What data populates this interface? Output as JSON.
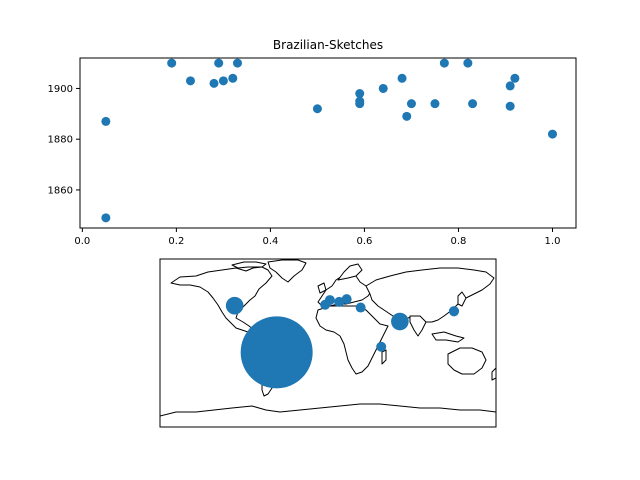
{
  "chart_data": [
    {
      "type": "scatter",
      "title": "Brazilian-Sketches",
      "xlabel": "",
      "ylabel": "",
      "xlim": [
        -0.005,
        1.05
      ],
      "ylim": [
        1845,
        1912
      ],
      "xticks": [
        "0.0",
        "0.2",
        "0.4",
        "0.6",
        "0.8",
        "1.0"
      ],
      "yticks": [
        "1860",
        "1880",
        "1900"
      ],
      "color": "#1f77b4",
      "points": [
        {
          "x": 0.05,
          "y": 1849
        },
        {
          "x": 0.05,
          "y": 1887
        },
        {
          "x": 0.19,
          "y": 1910
        },
        {
          "x": 0.23,
          "y": 1903
        },
        {
          "x": 0.28,
          "y": 1902
        },
        {
          "x": 0.29,
          "y": 1910
        },
        {
          "x": 0.3,
          "y": 1903
        },
        {
          "x": 0.32,
          "y": 1904
        },
        {
          "x": 0.33,
          "y": 1910
        },
        {
          "x": 0.5,
          "y": 1892
        },
        {
          "x": 0.59,
          "y": 1894
        },
        {
          "x": 0.59,
          "y": 1895
        },
        {
          "x": 0.59,
          "y": 1898
        },
        {
          "x": 0.64,
          "y": 1900
        },
        {
          "x": 0.68,
          "y": 1904
        },
        {
          "x": 0.69,
          "y": 1889
        },
        {
          "x": 0.7,
          "y": 1894
        },
        {
          "x": 0.75,
          "y": 1894
        },
        {
          "x": 0.77,
          "y": 1910
        },
        {
          "x": 0.82,
          "y": 1910
        },
        {
          "x": 0.83,
          "y": 1894
        },
        {
          "x": 0.91,
          "y": 1893
        },
        {
          "x": 0.91,
          "y": 1901
        },
        {
          "x": 0.92,
          "y": 1904
        },
        {
          "x": 1.0,
          "y": 1882
        }
      ]
    },
    {
      "type": "map-bubble",
      "projection": "equirectangular",
      "color": "#1f77b4",
      "bubbles": [
        {
          "lon": -55,
          "lat": -10,
          "weight": 100
        },
        {
          "lon": -100,
          "lat": 40,
          "weight": 6
        },
        {
          "lon": 77,
          "lat": 23,
          "weight": 6
        },
        {
          "lon": 135,
          "lat": 34,
          "weight": 2
        },
        {
          "lon": 57,
          "lat": -4,
          "weight": 1.2
        },
        {
          "lon": 2,
          "lat": 46,
          "weight": 1.5
        },
        {
          "lon": -3,
          "lat": 41,
          "weight": 1
        },
        {
          "lon": 12,
          "lat": 44,
          "weight": 1
        },
        {
          "lon": 20,
          "lat": 47,
          "weight": 1
        },
        {
          "lon": 35,
          "lat": 38,
          "weight": 1.1
        }
      ]
    }
  ]
}
